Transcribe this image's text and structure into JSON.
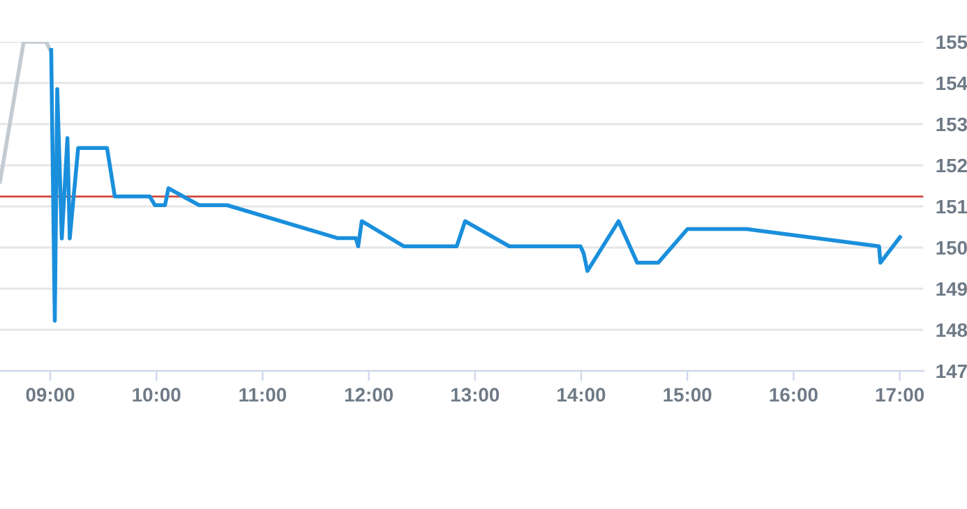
{
  "chart_data": {
    "type": "line",
    "series": [
      {
        "color": "#c3cbd2",
        "x": [
          8.527,
          8.75,
          8.96,
          9.0
        ],
        "values": [
          151.6,
          155.0,
          155.0,
          154.8
        ]
      },
      {
        "color": "#1a8fdc",
        "x": [
          9.009,
          9.043,
          9.066,
          9.109,
          9.162,
          9.184,
          9.263,
          9.535,
          9.608,
          9.937,
          9.986,
          10.081,
          10.113,
          10.402,
          10.665,
          11.703,
          11.878,
          11.9,
          11.934,
          12.329,
          12.828,
          12.907,
          13.323,
          13.993,
          14.023,
          14.059,
          14.352,
          14.528,
          14.725,
          15.001,
          15.557,
          16.805,
          16.818,
          17.002
        ],
        "values": [
          154.8,
          148.22,
          153.85,
          150.22,
          152.66,
          150.22,
          152.42,
          152.42,
          151.24,
          151.24,
          151.03,
          151.03,
          151.44,
          151.03,
          151.03,
          150.23,
          150.23,
          150.03,
          150.64,
          150.03,
          150.03,
          150.64,
          150.03,
          150.03,
          149.86,
          149.43,
          150.64,
          149.63,
          149.63,
          150.45,
          150.45,
          150.03,
          149.63,
          150.25
        ]
      }
    ],
    "ref_lines": [
      {
        "axis": "y",
        "value": 151.24,
        "color": "#d0453a"
      }
    ],
    "xlim": [
      8.527,
      17.226
    ],
    "xticks": [
      {
        "value": 9,
        "label": "09:00"
      },
      {
        "value": 10,
        "label": "10:00"
      },
      {
        "value": 11,
        "label": "11:00"
      },
      {
        "value": 12,
        "label": "12:00"
      },
      {
        "value": 13,
        "label": "13:00"
      },
      {
        "value": 14,
        "label": "14:00"
      },
      {
        "value": 15,
        "label": "15:00"
      },
      {
        "value": 16,
        "label": "16:00"
      },
      {
        "value": 17,
        "label": "17:00"
      }
    ],
    "ylim": [
      147,
      155
    ],
    "yticks": [
      147,
      148,
      149,
      150,
      151,
      152,
      153,
      154,
      155
    ],
    "grid": "y",
    "legend": false,
    "marker": "none",
    "line_style": "solid"
  }
}
